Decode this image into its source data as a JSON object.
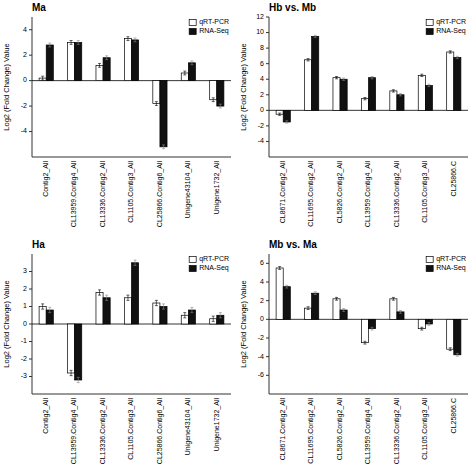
{
  "chart_data": [
    {
      "type": "bar",
      "title": "Ma",
      "y_label": "Log2 (Fold Change) Value",
      "categories": [
        "Contig2_All",
        "CL13959.Contig4_All",
        "CL13336.Contig2_All",
        "CL1105.Contig3_All",
        "CL25866.Contig6_All",
        "Unigene43104_All",
        "Unigene1732_All"
      ],
      "series": [
        {
          "name": "qRT-PCR",
          "color": "#ffffff",
          "values": [
            0.2,
            3.0,
            1.2,
            3.3,
            -1.8,
            0.6,
            -1.5
          ],
          "errors": [
            0.15,
            0.15,
            0.15,
            0.15,
            0.15,
            0.15,
            0.15
          ]
        },
        {
          "name": "RNA-Seq",
          "color": "#111111",
          "values": [
            2.8,
            3.0,
            1.8,
            3.2,
            -5.2,
            1.4,
            -2.0
          ],
          "errors": [
            0.15,
            0.15,
            0.15,
            0.15,
            0.15,
            0.15,
            0.15
          ]
        }
      ],
      "ylim": [
        -6,
        5
      ],
      "yticks": [
        -4,
        -2,
        0,
        2,
        4
      ],
      "legend": "upper right"
    },
    {
      "type": "bar",
      "title": "Hb vs. Mb",
      "y_label": "Log2 (Fold Change) Value",
      "categories": [
        "CL8671.Contig2_All",
        "CL11695.Contig2_All",
        "CL5826.Contig2_All",
        "CL13959.Contig4_All",
        "CL13336.Contig2_All",
        "CL1105.Contig3_All",
        "CL25866.C"
      ],
      "series": [
        {
          "name": "qRT-PCR",
          "color": "#ffffff",
          "values": [
            -0.5,
            6.5,
            4.2,
            1.5,
            2.5,
            4.5,
            7.5
          ],
          "errors": [
            0.15,
            0.15,
            0.15,
            0.15,
            0.15,
            0.15,
            0.15
          ]
        },
        {
          "name": "RNA-Seq",
          "color": "#111111",
          "values": [
            -1.5,
            9.5,
            4.0,
            4.2,
            2.0,
            3.2,
            6.8
          ],
          "errors": [
            0.15,
            0.15,
            0.15,
            0.15,
            0.15,
            0.15,
            0.15
          ]
        }
      ],
      "ylim": [
        -6,
        12
      ],
      "yticks": [
        -4,
        -2,
        0,
        2,
        4,
        6,
        8,
        10,
        12
      ],
      "legend": "upper right"
    },
    {
      "type": "bar",
      "title": "Ha",
      "y_label": "Log2 (Fold Change) Value",
      "categories": [
        "Contig2_All",
        "CL13959.Contig4_All",
        "CL13336.Contig2_All",
        "CL1105.Contig3_All",
        "CL25866.Contig6_All",
        "Unigene43104_All",
        "Unigene1732_All"
      ],
      "series": [
        {
          "name": "qRT-PCR",
          "color": "#ffffff",
          "values": [
            1.0,
            -2.8,
            1.8,
            1.5,
            1.2,
            0.5,
            0.3
          ],
          "errors": [
            0.15,
            0.15,
            0.15,
            0.15,
            0.15,
            0.15,
            0.15
          ]
        },
        {
          "name": "RNA-Seq",
          "color": "#111111",
          "values": [
            0.8,
            -3.2,
            1.5,
            3.5,
            1.0,
            0.8,
            0.5
          ],
          "errors": [
            0.15,
            0.15,
            0.15,
            0.15,
            0.15,
            0.15,
            0.15
          ]
        }
      ],
      "ylim": [
        -4,
        4
      ],
      "yticks": [
        -3,
        -2,
        -1,
        0,
        1,
        2,
        3
      ],
      "legend": "upper right"
    },
    {
      "type": "bar",
      "title": "Mb vs. Ma",
      "y_label": "Log2 (Fold Change) Value",
      "categories": [
        "CL8671.Contig2_All",
        "CL11695.Contig2_All",
        "CL5826.Contig2_All",
        "CL13959.Contig4_All",
        "CL13336.Contig2_All",
        "CL1105.Contig3_All",
        "CL25866.C"
      ],
      "series": [
        {
          "name": "qRT-PCR",
          "color": "#ffffff",
          "values": [
            5.5,
            1.2,
            2.2,
            -2.5,
            2.2,
            -1.0,
            -3.2
          ],
          "errors": [
            0.15,
            0.15,
            0.15,
            0.15,
            0.15,
            0.15,
            0.15
          ]
        },
        {
          "name": "RNA-Seq",
          "color": "#111111",
          "values": [
            3.5,
            2.8,
            1.0,
            -1.0,
            0.8,
            -0.5,
            -3.8
          ],
          "errors": [
            0.15,
            0.15,
            0.15,
            0.15,
            0.15,
            0.15,
            0.15
          ]
        }
      ],
      "ylim": [
        -8,
        7
      ],
      "yticks": [
        -6,
        -4,
        -2,
        0,
        2,
        4,
        6
      ],
      "legend": "upper right"
    }
  ]
}
